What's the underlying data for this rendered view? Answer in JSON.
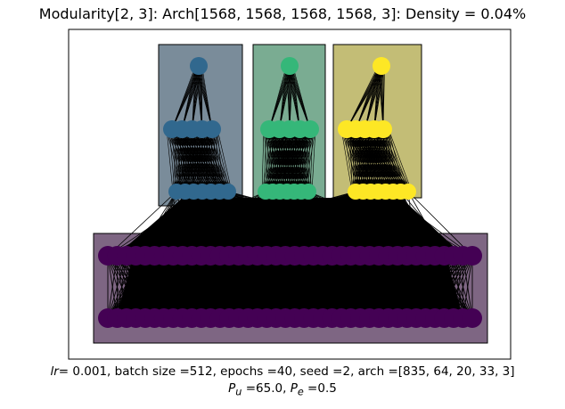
{
  "title": "Modularity[2, 3]: Arch[1568, 1568, 1568, 1568, 3]: Density = 0.04%",
  "caption": {
    "lr_symbol": "lr",
    "line1_rest": " 0.001, batch size =512, epochs =40, seed =2, arch =[835, 64, 20, 33, 3]",
    "pu_symbol": "P",
    "pu_sub": "u",
    "pu_value": " =65.0, ",
    "pe_symbol": "P",
    "pe_sub": "e",
    "pe_value": " =0.5"
  },
  "colors": {
    "module_blue": "#31688e",
    "module_green": "#35b779",
    "module_yellow": "#fde725",
    "module_purple": "#440154",
    "box_blue": "#7a8c9a",
    "box_green": "#7aac92",
    "box_yellow": "#c3bd76",
    "box_purple": "#7e6683",
    "edge": "#000000"
  },
  "modules": [
    {
      "name": "module-blue",
      "layers": [
        1,
        5,
        7
      ]
    },
    {
      "name": "module-green",
      "layers": [
        1,
        5,
        7
      ]
    },
    {
      "name": "module-yellow",
      "layers": [
        1,
        5,
        8
      ]
    },
    {
      "name": "module-input",
      "layers": [
        2
      ]
    }
  ]
}
